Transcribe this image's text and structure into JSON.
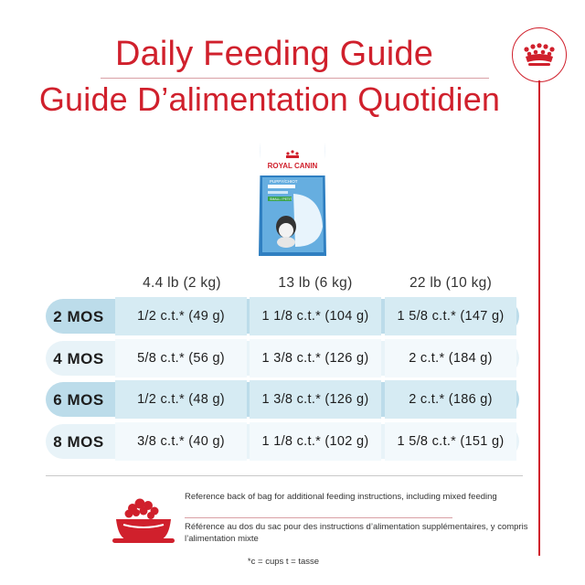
{
  "title": {
    "en": "Daily Feeding Guide",
    "fr": "Guide D’alimentation Quotidien"
  },
  "product": {
    "brand": "ROYAL CANIN",
    "name": "PUPPY/CHIOT",
    "size": "SMALL / PETIT"
  },
  "table": {
    "columns": [
      "4.4 lb (2 kg)",
      "13 lb (6 kg)",
      "22 lb (10 kg)"
    ],
    "rows": [
      {
        "age": "2 MOS",
        "values": [
          "1/2 c.t.* (49 g)",
          "1 1/8 c.t.* (104 g)",
          "1 5/8 c.t.* (147 g)"
        ]
      },
      {
        "age": "4 MOS",
        "values": [
          "5/8 c.t.* (56 g)",
          "1 3/8 c.t.* (126 g)",
          "2 c.t.* (184 g)"
        ]
      },
      {
        "age": "6 MOS",
        "values": [
          "1/2 c.t.* (48 g)",
          "1 3/8 c.t.* (126 g)",
          "2 c.t.* (186 g)"
        ]
      },
      {
        "age": "8 MOS",
        "values": [
          "3/8 c.t.* (40 g)",
          "1 1/8 c.t.* (102 g)",
          "1 5/8 c.t.* (151 g)"
        ]
      }
    ]
  },
  "notes": {
    "en": "Reference back of bag for additional feeding instructions, including mixed feeding",
    "fr": "Référence au dos du sac pour des instructions d’alimentation supplémentaires, y compris l’alimentation mixte"
  },
  "footnote": "*c = cups t = tasse",
  "colors": {
    "brand_red": "#d0202c",
    "row_blue": "#bcdcea",
    "row_pale": "#e8f3f8"
  },
  "icons": {
    "badge": "royal-crown-icon",
    "bowl": "food-bowl-icon"
  }
}
